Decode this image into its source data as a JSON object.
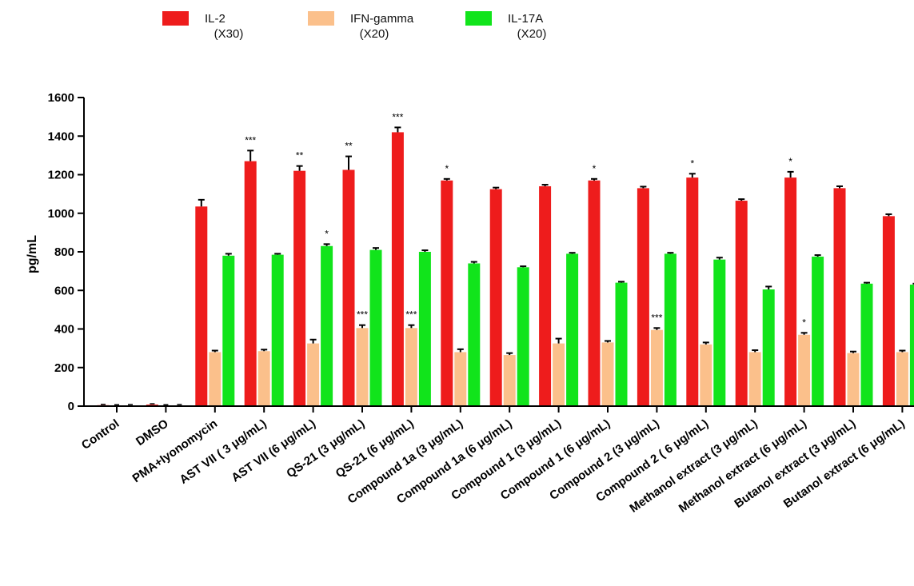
{
  "chart_data": {
    "type": "bar",
    "ylabel": "pg/mL",
    "xlabel": "",
    "ylim": [
      0,
      1600
    ],
    "yticks": [
      0,
      200,
      400,
      600,
      800,
      1000,
      1200,
      1400,
      1600
    ],
    "grid": false,
    "legend_position": "top-left",
    "categories": [
      "Control",
      "DMSO",
      "PMA+Iyonomycin",
      "AST VII ( 3 μg/mL)",
      "AST VII (6 μg/mL)",
      "QS-21 (3 μg/mL)",
      "QS-21 (6 μg/mL)",
      "Compound 1a (3 μg/mL)",
      "Compound 1a (6 μg/mL)",
      "Compound 1 (3 μg/mL)",
      "Compound 1 (6 μg/mL)",
      "Compound 2 (3 μg/mL)",
      "Compound 2 ( 6 μg/mL)",
      "Methanol extract (3 μg/mL)",
      "Methanol extract (6 μg/mL)",
      "Butanol extract (3 μg/mL)",
      "Butanol extract (6 μg/mL)"
    ],
    "series": [
      {
        "name": "IL-2",
        "multiplier": "(X30)",
        "color": "#ee1c1c",
        "values": [
          5,
          8,
          1035,
          1270,
          1220,
          1225,
          1420,
          1170,
          1125,
          1140,
          1170,
          1130,
          1185,
          1065,
          1185,
          1130,
          985
        ],
        "errors": [
          0,
          0,
          35,
          55,
          25,
          70,
          25,
          8,
          8,
          8,
          8,
          8,
          20,
          8,
          30,
          10,
          10
        ],
        "sig": [
          "",
          "",
          "",
          "***",
          "**",
          "**",
          "***",
          "*",
          "",
          "",
          "*",
          "",
          "*",
          "",
          "*",
          "",
          ""
        ]
      },
      {
        "name": "IFN-gamma",
        "multiplier": "(X20)",
        "color": "#fbc08b",
        "values": [
          3,
          3,
          280,
          285,
          325,
          405,
          405,
          280,
          265,
          325,
          330,
          395,
          320,
          280,
          370,
          275,
          280
        ],
        "errors": [
          0,
          0,
          8,
          8,
          20,
          15,
          15,
          15,
          10,
          25,
          8,
          10,
          10,
          10,
          10,
          8,
          8
        ],
        "sig": [
          "",
          "",
          "",
          "",
          "",
          "***",
          "***",
          "",
          "",
          "",
          "",
          "***",
          "",
          "",
          "*",
          "",
          ""
        ]
      },
      {
        "name": "IL-17A",
        "multiplier": "(X20)",
        "color": "#11e41b",
        "values": [
          4,
          4,
          780,
          785,
          830,
          810,
          800,
          740,
          720,
          790,
          640,
          790,
          760,
          605,
          775,
          635,
          630
        ],
        "errors": [
          0,
          0,
          10,
          5,
          10,
          10,
          8,
          8,
          5,
          5,
          5,
          5,
          10,
          15,
          8,
          5,
          5
        ],
        "sig": [
          "",
          "",
          "",
          "",
          "*",
          "",
          "",
          "",
          "",
          "",
          "",
          "",
          "",
          "",
          "",
          "",
          ""
        ]
      }
    ]
  }
}
